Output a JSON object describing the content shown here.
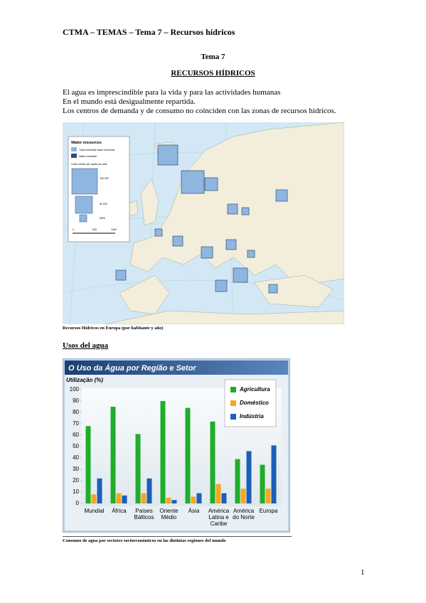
{
  "header": "CTMA – TEMAS – Tema 7 – Recursos hídricos",
  "topic": "Tema 7",
  "title": "RECURSOS HÍDRICOS",
  "paragraphs": [
    "El agua es imprescindible para la vida y para las actividades humanas",
    "En el mundo está desigualmente repartida.",
    "Los centros de demanda y de consumo no coinciden con las zonas de recursos hídricos."
  ],
  "map": {
    "legend_title": "Water resources",
    "legend_items": [
      "Total renewable water resources",
      "Water extraction"
    ],
    "size_title": "Cubic metres per capita per year",
    "size_labels": [
      "150 000",
      "50 000",
      "5000"
    ],
    "scale_labels": [
      "0",
      "500",
      "1000"
    ]
  },
  "map_caption": "Recursos Hídricos en Europa (por habitante y año)",
  "section_heading": "Usos del agua",
  "chart_data": {
    "type": "bar",
    "title": "O Uso da Água por Região e Setor",
    "y_label": "Utilização (%)",
    "categories": [
      "Mundial",
      "África",
      "Países Bálticos",
      "Oriente Médio",
      "Ásia",
      "América Latina e Caribe",
      "América do Norte",
      "Europa"
    ],
    "series": [
      {
        "name": "Agricultura",
        "color": "#1fae2a",
        "values": [
          68,
          85,
          61,
          90,
          84,
          72,
          39,
          34
        ]
      },
      {
        "name": "Doméstico",
        "color": "#f5a623",
        "values": [
          8,
          9,
          9,
          5,
          6,
          17,
          13,
          13
        ]
      },
      {
        "name": "Indústria",
        "color": "#1c5fb8",
        "values": [
          22,
          7,
          22,
          3,
          9,
          9,
          46,
          51
        ]
      }
    ],
    "ylim": [
      0,
      100
    ],
    "yticks": [
      0,
      10,
      20,
      30,
      40,
      50,
      60,
      70,
      80,
      90,
      100
    ]
  },
  "chart_caption": "Consumo de agua por sectores socioeconómicos en las distintas regiones del mundo",
  "page_number": "1"
}
